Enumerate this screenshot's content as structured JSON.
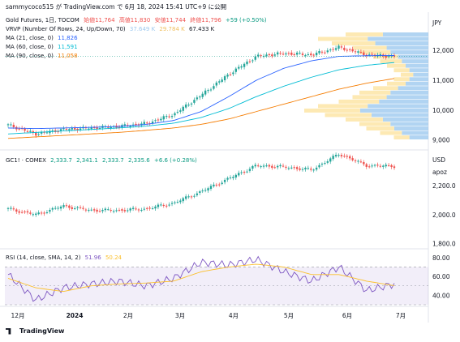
{
  "header": {
    "line": "sammycoco515 が TradingView.com で 6月 18, 2024 15:41 UTC+9 に公開"
  },
  "pane1": {
    "legend": {
      "symbol": "Gold Futures, 1日, TOCOM",
      "open": "始値11,764",
      "high": "高値11,830",
      "low": "安値11,744",
      "close": "終値11,796",
      "change": "+59 (+0.50%)"
    },
    "vrvp": {
      "label": "VRVP (Number Of Rows, 24, Up/Down, 70)",
      "v1": "37.649 K",
      "v2": "29.784 K",
      "v3": "67.433 K"
    },
    "ma21": {
      "label": "MA (21, close, 0)",
      "value": "11,826"
    },
    "ma60": {
      "label": "MA (60, close, 0)",
      "value": "11,591"
    },
    "ma90": {
      "label": "MA (90, close, 0)",
      "value": "11,058"
    },
    "currency": "JPY"
  },
  "pane2": {
    "legend": {
      "symbol": "GC1! · COMEX",
      "o": "2,333.7",
      "h": "2,341.1",
      "l": "2,333.7",
      "c": "2,335.6",
      "change": "+6.6 (+0.28%)"
    },
    "currency": "USD",
    "sub": "apoz"
  },
  "pane3": {
    "legend": {
      "label": "RSI (14, close, SMA, 14, 2)",
      "rsi": "51.96",
      "sma": "50.24"
    }
  },
  "x_axis": [
    "12月",
    "2024",
    "2月",
    "3月",
    "4月",
    "5月",
    "6月",
    "7月"
  ],
  "brand": "TradingView",
  "colors": {
    "up": "#26a69a",
    "down": "#ef5350",
    "ma21": "#2962ff",
    "ma60": "#00bcd4",
    "ma90": "#f57c00",
    "rsi": "#7e57c2",
    "rsi_sma": "#fbc02d",
    "vrvp_up": "#9ec9ef",
    "vrvp_down": "#fce4a0"
  },
  "chart_data": [
    {
      "type": "candlestick",
      "title": "Gold Futures, 1日, TOCOM",
      "y_ticks": [
        9000,
        10000,
        11000,
        12000
      ],
      "ylim": [
        8800,
        12600
      ],
      "x": [
        "2023-11-28",
        "2023-12-15",
        "2024-01-02",
        "2024-01-20",
        "2024-02-05",
        "2024-02-20",
        "2024-03-05",
        "2024-03-20",
        "2024-04-05",
        "2024-04-15",
        "2024-04-25",
        "2024-05-05",
        "2024-05-20",
        "2024-06-05",
        "2024-06-18"
      ],
      "close": [
        9500,
        9200,
        9350,
        9400,
        9450,
        9550,
        9850,
        10500,
        11200,
        11800,
        11900,
        11850,
        12100,
        11850,
        11796
      ],
      "ma21_close": [
        9400,
        9380,
        9400,
        9420,
        9450,
        9520,
        9650,
        9950,
        10450,
        11000,
        11400,
        11650,
        11800,
        11820,
        11826
      ],
      "ma60_close": [
        9200,
        9250,
        9300,
        9350,
        9400,
        9460,
        9560,
        9750,
        10050,
        10450,
        10800,
        11100,
        11350,
        11500,
        11591
      ],
      "ma90_close": [
        9050,
        9100,
        9150,
        9200,
        9250,
        9320,
        9400,
        9520,
        9700,
        9950,
        10200,
        10450,
        10700,
        10900,
        11058
      ]
    },
    {
      "type": "candlestick",
      "title": "GC1! · COMEX",
      "y_ticks": [
        1800,
        2000,
        2200
      ],
      "ylim": [
        1780,
        2420
      ],
      "close": [
        2040,
        2000,
        2060,
        2030,
        2030,
        2040,
        2080,
        2160,
        2250,
        2340,
        2330,
        2310,
        2420,
        2340,
        2335.6
      ]
    },
    {
      "type": "line",
      "title": "RSI (14, close, SMA, 14, 2)",
      "y_ticks": [
        40,
        60,
        80
      ],
      "ylim": [
        30,
        85
      ],
      "rsi": [
        62,
        35,
        48,
        52,
        55,
        50,
        58,
        75,
        72,
        78,
        65,
        55,
        70,
        45,
        51.96
      ],
      "sma": [
        58,
        48,
        44,
        50,
        52,
        53,
        55,
        65,
        70,
        73,
        70,
        62,
        62,
        55,
        50.24
      ]
    }
  ]
}
